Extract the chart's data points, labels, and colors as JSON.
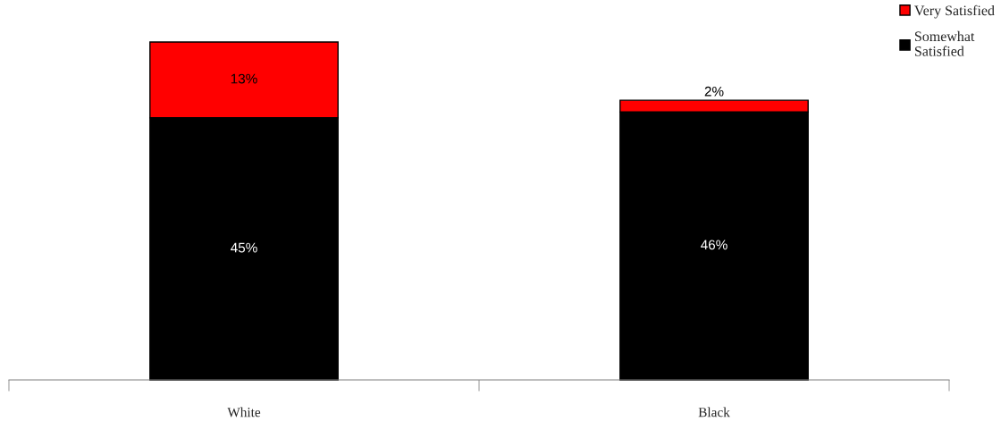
{
  "chart_data": {
    "type": "bar",
    "categories": [
      "White",
      "Black"
    ],
    "stacked": true,
    "legend": "top right",
    "grid": false,
    "series": [
      {
        "name": "Somewhat Satisfied",
        "color": "#000000",
        "values": [
          45,
          46
        ],
        "value_labels": [
          "45%",
          "46%"
        ]
      },
      {
        "name": "Very Satisfied",
        "color": "#ff0000",
        "values": [
          13,
          2
        ],
        "value_labels": [
          "13%",
          "2%"
        ]
      }
    ]
  }
}
